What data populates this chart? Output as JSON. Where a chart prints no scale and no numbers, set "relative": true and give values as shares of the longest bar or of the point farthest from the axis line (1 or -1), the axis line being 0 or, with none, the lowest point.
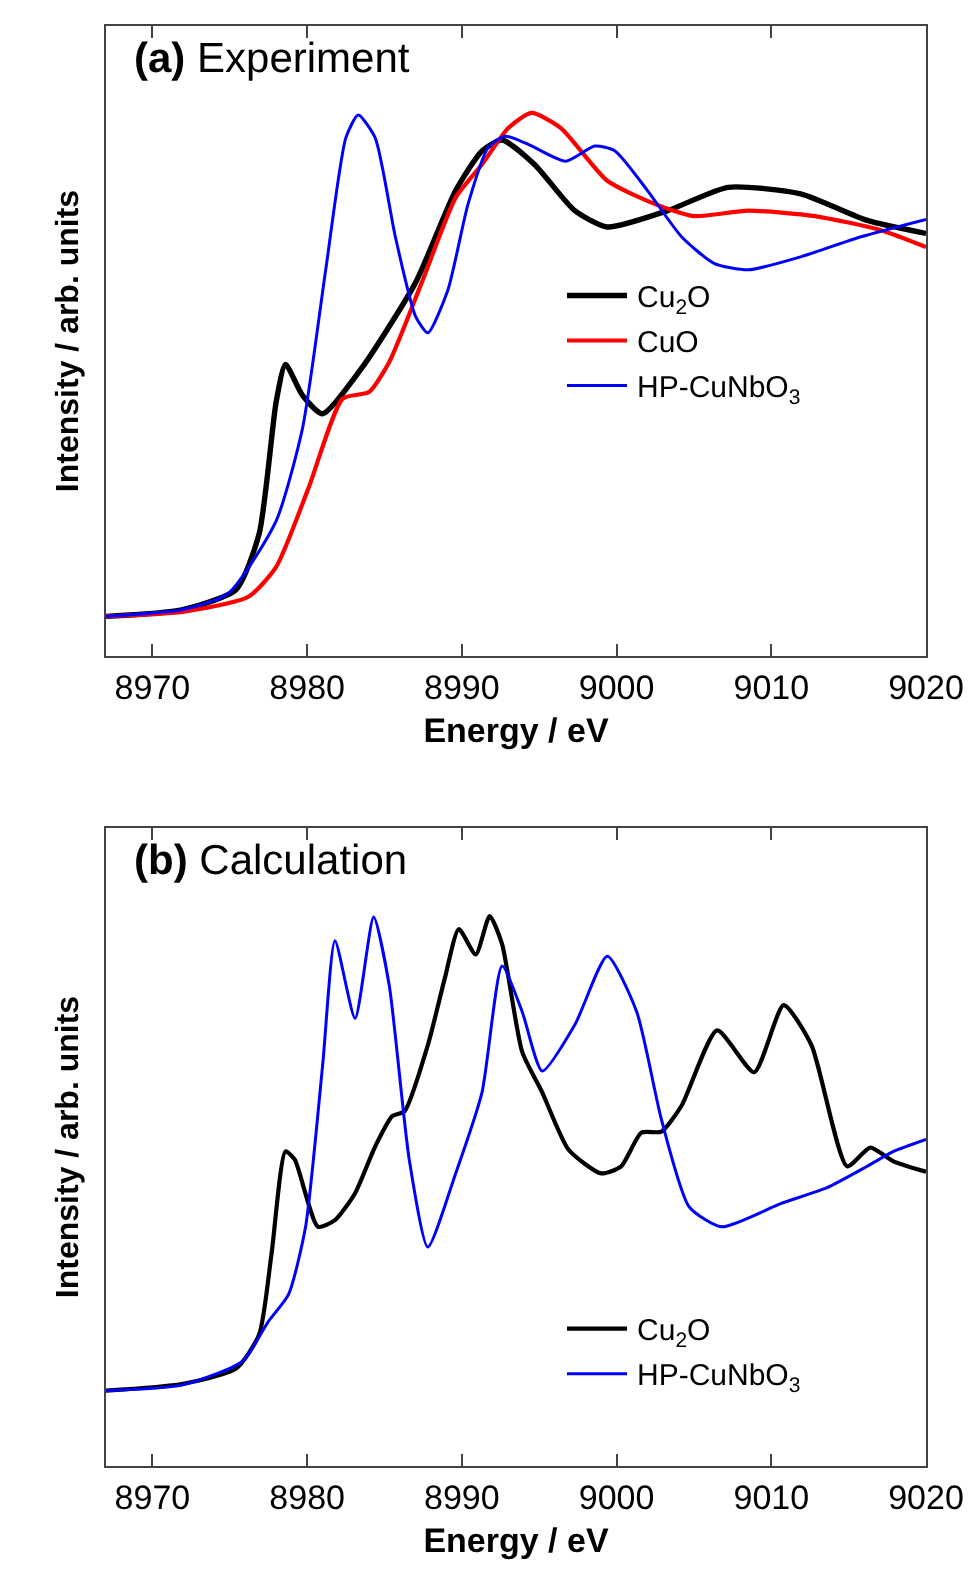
{
  "chart_data": [
    {
      "type": "line",
      "title": "(a) Experiment",
      "xlabel": "Energy / eV",
      "ylabel": "Intensity / arb. units",
      "relative": true,
      "xlim": [
        8967,
        9020
      ],
      "xticks": [
        8970,
        8980,
        8990,
        9000,
        9010,
        9020
      ],
      "tick_labels": "x",
      "legend": "right",
      "grid": false,
      "marker": "none",
      "line_style": "solid",
      "series": [
        {
          "name": "Cu$_{2}$O",
          "color": "#000000",
          "x": [
            8967,
            8971.9,
            8975.4,
            8976.9,
            8978.0,
            8978.6,
            8979.7,
            8981.0,
            8983.5,
            8987.0,
            8989.6,
            8991.3,
            8992.6,
            8994.7,
            8997.3,
            8999.4,
            9003.3,
            9007.2,
            9011.9,
            9016.2,
            9020
          ],
          "values": [
            0.073,
            0.085,
            0.122,
            0.225,
            0.468,
            0.537,
            0.48,
            0.446,
            0.529,
            0.687,
            0.857,
            0.93,
            0.95,
            0.905,
            0.82,
            0.79,
            0.82,
            0.863,
            0.851,
            0.802,
            0.778
          ]
        },
        {
          "name": "CuO",
          "color": "#ff0000",
          "x": [
            8967,
            8971.9,
            8976.2,
            8978.0,
            8980.1,
            8982.3,
            8984.0,
            8985.3,
            8987.4,
            8989.6,
            8991.3,
            8993.0,
            8994.5,
            8996.4,
            8999.4,
            9002.5,
            9005.0,
            9008.5,
            9012.8,
            9017.1,
            9020
          ],
          "values": [
            0.073,
            0.081,
            0.109,
            0.164,
            0.31,
            0.474,
            0.486,
            0.541,
            0.687,
            0.844,
            0.905,
            0.972,
            1.0,
            0.972,
            0.875,
            0.832,
            0.81,
            0.82,
            0.81,
            0.784,
            0.753
          ]
        },
        {
          "name": "HP-CuNbO$_{3}$",
          "color": "#0000ff",
          "x": [
            8967,
            8971.9,
            8974.9,
            8978.0,
            8979.7,
            8981.2,
            8982.5,
            8983.3,
            8984.4,
            8985.7,
            8987.0,
            8987.8,
            8989.1,
            8990.4,
            8991.7,
            8992.8,
            8994.3,
            8996.7,
            8998.6,
            8999.9,
            9002.0,
            9004.2,
            9006.3,
            9008.5,
            9011.9,
            9015.8,
            9020
          ],
          "values": [
            0.073,
            0.085,
            0.115,
            0.249,
            0.419,
            0.711,
            0.954,
            0.996,
            0.954,
            0.772,
            0.626,
            0.595,
            0.674,
            0.832,
            0.936,
            0.957,
            0.942,
            0.911,
            0.939,
            0.93,
            0.857,
            0.772,
            0.723,
            0.711,
            0.735,
            0.772,
            0.804
          ]
        }
      ]
    },
    {
      "type": "line",
      "title": "(b) Calculation",
      "xlabel": "Energy / eV",
      "ylabel": "Intensity / arb. units",
      "relative": true,
      "xlim": [
        8967,
        9020
      ],
      "xticks": [
        8970,
        8980,
        8990,
        9000,
        9010,
        9020
      ],
      "tick_labels": "x",
      "legend": "bottom right",
      "grid": false,
      "marker": "none",
      "line_style": "solid",
      "series": [
        {
          "name": "Cu$_{2}$O",
          "color": "#000000",
          "x": [
            8967,
            8971.9,
            8975.4,
            8976.9,
            8977.7,
            8978.6,
            8979.2,
            8980.7,
            8981.8,
            8983.1,
            8984.4,
            8985.5,
            8986.3,
            8987.8,
            8988.9,
            8989.8,
            8990.9,
            8991.8,
            8992.6,
            8993.9,
            8995.2,
            8996.9,
            8999.0,
            9000.3,
            9001.6,
            9002.9,
            9004.2,
            9006.5,
            9008.9,
            9010.8,
            9012.6,
            9014.9,
            9016.4,
            9017.9,
            9020
          ],
          "values": [
            0.137,
            0.149,
            0.177,
            0.239,
            0.386,
            0.572,
            0.557,
            0.435,
            0.447,
            0.496,
            0.581,
            0.636,
            0.645,
            0.765,
            0.887,
            0.976,
            0.93,
            1.0,
            0.949,
            0.753,
            0.679,
            0.575,
            0.532,
            0.545,
            0.606,
            0.608,
            0.655,
            0.792,
            0.716,
            0.838,
            0.765,
            0.545,
            0.579,
            0.554,
            0.535
          ]
        },
        {
          "name": "HP-CuNbO$_{3}$",
          "color": "#0000ff",
          "x": [
            8967,
            8971.9,
            8975.8,
            8977.5,
            8978.8,
            8979.9,
            8981.0,
            8981.8,
            8983.1,
            8984.3,
            8985.3,
            8986.6,
            8987.8,
            8989.6,
            8991.3,
            8992.6,
            8993.9,
            8995.2,
            8997.3,
            8999.4,
            9001.3,
            9002.9,
            9004.7,
            9006.8,
            9010.6,
            9013.6,
            9016.2,
            9017.9,
            9020
          ],
          "values": [
            0.137,
            0.147,
            0.19,
            0.263,
            0.312,
            0.435,
            0.728,
            0.955,
            0.814,
            0.998,
            0.875,
            0.557,
            0.398,
            0.532,
            0.679,
            0.909,
            0.826,
            0.718,
            0.802,
            0.927,
            0.826,
            0.63,
            0.471,
            0.435,
            0.477,
            0.506,
            0.545,
            0.572,
            0.594
          ]
        }
      ]
    }
  ]
}
